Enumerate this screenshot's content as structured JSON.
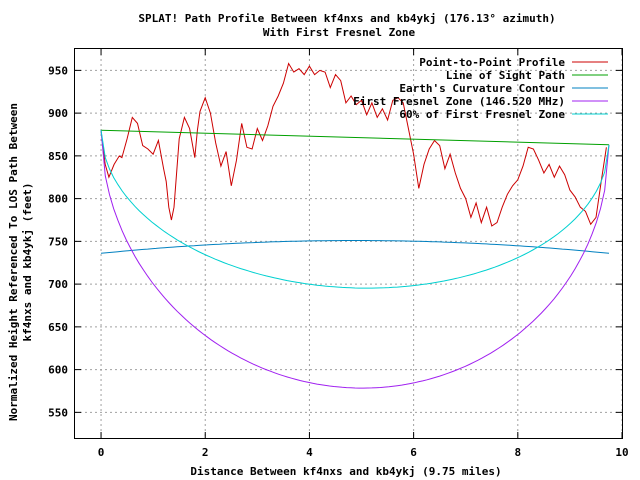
{
  "chart_data": {
    "type": "line",
    "title": "SPLAT! Path Profile Between kf4nxs and kb4ykj (176.13° azimuth)",
    "subtitle": "With First Fresnel Zone",
    "xlabel": "Distance Between kf4nxs and kb4ykj (9.75 miles)",
    "ylabel_line1": "Normalized Height Referenced To LOS Path Between",
    "ylabel_line2": "kf4nxs and kb4ykj (feet)",
    "xlim": [
      -0.5,
      10
    ],
    "ylim": [
      520,
      975
    ],
    "xticks": [
      0,
      2,
      4,
      6,
      8,
      10
    ],
    "yticks": [
      550,
      600,
      650,
      700,
      750,
      800,
      850,
      900,
      950
    ],
    "grid": true,
    "legend_position": "top-right",
    "series": [
      {
        "name": "Point-to-Point Profile",
        "color": "#cc0000",
        "x": [
          0.0,
          0.08,
          0.15,
          0.25,
          0.35,
          0.4,
          0.5,
          0.6,
          0.7,
          0.8,
          0.9,
          1.0,
          1.1,
          1.2,
          1.25,
          1.3,
          1.35,
          1.4,
          1.5,
          1.6,
          1.7,
          1.8,
          1.85,
          1.9,
          2.0,
          2.1,
          2.2,
          2.3,
          2.4,
          2.5,
          2.6,
          2.7,
          2.8,
          2.9,
          3.0,
          3.1,
          3.2,
          3.3,
          3.4,
          3.5,
          3.6,
          3.7,
          3.8,
          3.9,
          4.0,
          4.1,
          4.2,
          4.3,
          4.4,
          4.5,
          4.6,
          4.7,
          4.8,
          4.9,
          5.0,
          5.1,
          5.2,
          5.3,
          5.4,
          5.5,
          5.6,
          5.7,
          5.8,
          5.9,
          6.0,
          6.1,
          6.2,
          6.3,
          6.4,
          6.5,
          6.6,
          6.7,
          6.8,
          6.9,
          7.0,
          7.1,
          7.2,
          7.3,
          7.4,
          7.5,
          7.6,
          7.7,
          7.8,
          7.9,
          8.0,
          8.1,
          8.2,
          8.3,
          8.4,
          8.5,
          8.6,
          8.7,
          8.8,
          8.9,
          9.0,
          9.1,
          9.2,
          9.3,
          9.4,
          9.5,
          9.6,
          9.7
        ],
        "values": [
          880,
          840,
          825,
          840,
          850,
          848,
          870,
          895,
          888,
          862,
          858,
          852,
          868,
          835,
          820,
          790,
          775,
          790,
          870,
          895,
          882,
          848,
          880,
          902,
          918,
          900,
          865,
          838,
          855,
          815,
          845,
          888,
          860,
          858,
          882,
          868,
          885,
          908,
          920,
          935,
          958,
          948,
          952,
          945,
          955,
          945,
          950,
          948,
          930,
          945,
          938,
          912,
          920,
          910,
          915,
          898,
          912,
          895,
          905,
          892,
          915,
          918,
          912,
          882,
          852,
          812,
          840,
          858,
          868,
          862,
          835,
          852,
          830,
          812,
          800,
          778,
          795,
          772,
          790,
          768,
          772,
          790,
          805,
          815,
          822,
          838,
          860,
          858,
          845,
          830,
          840,
          825,
          838,
          828,
          810,
          802,
          790,
          785,
          770,
          778,
          820,
          860
        ]
      },
      {
        "name": "Line of Sight Path",
        "color": "#00a000",
        "x": [
          0.0,
          9.75
        ],
        "values": [
          880,
          863
        ]
      },
      {
        "name": "Earth's Curvature Contour",
        "color": "#0080c0",
        "curve": "parabola",
        "x_range": [
          0.0,
          9.75
        ],
        "ends": [
          736,
          736
        ],
        "mid": 751
      },
      {
        "name": "First Fresnel Zone (146.520 MHz)",
        "color": "#a020f0",
        "curve": "ellipse",
        "x_range": [
          0.0,
          9.75
        ],
        "ends": [
          880,
          863
        ],
        "depth": 293
      },
      {
        "name": "60% of First Fresnel Zone",
        "color": "#00d0d0",
        "curve": "ellipse",
        "x_range": [
          0.0,
          9.75
        ],
        "ends": [
          880,
          863
        ],
        "depth": 176
      }
    ]
  }
}
